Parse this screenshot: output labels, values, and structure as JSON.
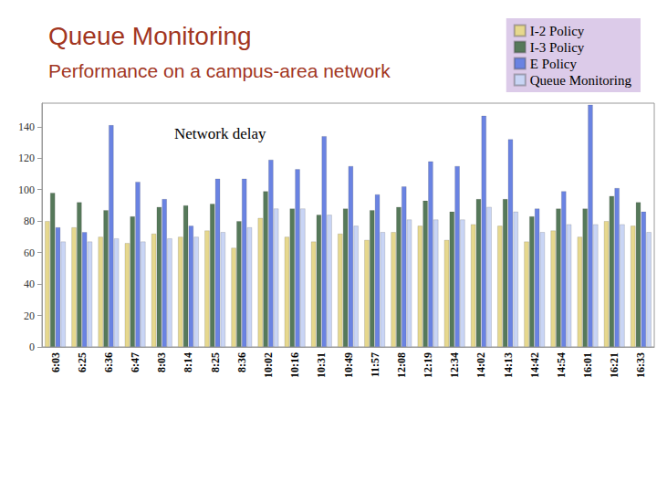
{
  "chart_data": {
    "type": "bar",
    "title": "Queue Monitoring",
    "subtitle": "Performance on a campus-area network",
    "annotation": "Network delay",
    "categories": [
      "6:03",
      "6:25",
      "6:36",
      "6:47",
      "8:03",
      "8:14",
      "8:25",
      "8:36",
      "10:02",
      "10:16",
      "10:31",
      "10:49",
      "11:57",
      "12:08",
      "12:19",
      "12:34",
      "14:02",
      "14:13",
      "14:42",
      "14:54",
      "16:01",
      "16:21",
      "16:33"
    ],
    "series": [
      {
        "name": "I-2 Policy",
        "color": "#e6d88e",
        "values": [
          80,
          76,
          70,
          66,
          72,
          70,
          74,
          63,
          82,
          70,
          67,
          72,
          68,
          73,
          77,
          68,
          78,
          77,
          67,
          74,
          70,
          80,
          77
        ]
      },
      {
        "name": "I-3 Policy",
        "color": "#56795a",
        "values": [
          98,
          92,
          87,
          83,
          89,
          90,
          91,
          80,
          99,
          88,
          84,
          88,
          87,
          89,
          93,
          86,
          94,
          94,
          83,
          88,
          88,
          96,
          92
        ]
      },
      {
        "name": "E Policy",
        "color": "#6a83e2",
        "values": [
          76,
          73,
          141,
          105,
          94,
          77,
          107,
          107,
          119,
          113,
          134,
          115,
          97,
          102,
          118,
          115,
          147,
          132,
          88,
          99,
          154,
          101,
          86
        ]
      },
      {
        "name": "Queue Monitoring",
        "color": "#c9d5f5",
        "values": [
          67,
          67,
          69,
          67,
          69,
          70,
          73,
          76,
          88,
          88,
          84,
          77,
          73,
          81,
          81,
          81,
          89,
          86,
          73,
          78,
          78,
          78,
          73
        ]
      }
    ],
    "ylim": [
      0,
      155
    ],
    "yticks": [
      0,
      20,
      40,
      60,
      80,
      100,
      120,
      140
    ],
    "grid": false,
    "legend": "top-right"
  }
}
